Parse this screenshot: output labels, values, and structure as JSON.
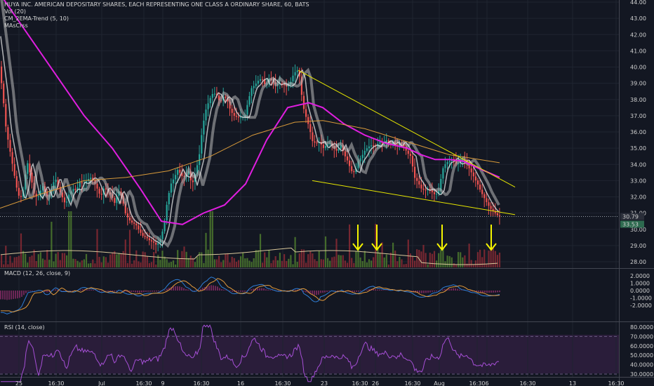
{
  "header": {
    "symbol_title": "HUYA INC. AMERICAN DEPOSITARY SHARES, EACH REPRESENTING ONE CLASS A ORDINARY SHARE, 60, BATS",
    "indicators": [
      "Vol (20)",
      "CM_2EMA-Trend (5, 10)",
      "MAsCrss"
    ]
  },
  "macd_panel": {
    "label": "MACD (12, 26, close, 9)"
  },
  "rsi_panel": {
    "label": "RSI (14, close)"
  },
  "price_badges": {
    "last": "30.79",
    "secondary": "33.53"
  },
  "colors": {
    "background": "#131722",
    "up": "#26a69a",
    "down": "#ef5350",
    "ema": "#e01ee0",
    "trendline": "#e6e600",
    "arrow": "#f5f500",
    "grid": "#1f2430"
  },
  "chart_data": {
    "type": "candlestick",
    "price_axis": {
      "ticks": [
        "44.00",
        "43.00",
        "42.00",
        "41.00",
        "40.00",
        "39.00",
        "38.00",
        "37.00",
        "36.00",
        "35.00",
        "34.00",
        "33.00",
        "32.00",
        "31.00",
        "30.00",
        "29.00",
        "28.00"
      ],
      "range": [
        27.7,
        44.0
      ]
    },
    "time_axis": {
      "ticks": [
        "25",
        "16:30",
        "Jul",
        "16:30",
        "9",
        "16:30",
        "16",
        "16:30",
        "23",
        "16:30",
        "26",
        "16:30",
        "Aug",
        "16:30",
        "6",
        "16:30",
        "13",
        "16:30"
      ]
    },
    "price_path": [
      [
        0,
        40.2
      ],
      [
        5,
        38.5
      ],
      [
        10,
        36.2
      ],
      [
        15,
        35.0
      ],
      [
        20,
        33.8
      ],
      [
        25,
        32.6
      ],
      [
        30,
        31.8
      ],
      [
        35,
        32.5
      ],
      [
        40,
        34.2
      ],
      [
        45,
        33.3
      ],
      [
        50,
        32.2
      ],
      [
        55,
        31.9
      ],
      [
        62,
        32.7
      ],
      [
        66,
        32.3
      ],
      [
        70,
        31.9
      ],
      [
        75,
        32.5
      ],
      [
        80,
        33.2
      ],
      [
        85,
        32.5
      ],
      [
        90,
        32.0
      ],
      [
        95,
        31.5
      ],
      [
        100,
        32.2
      ],
      [
        106,
        32.5
      ],
      [
        110,
        32.4
      ],
      [
        115,
        32.9
      ],
      [
        120,
        32.8
      ],
      [
        125,
        33.0
      ],
      [
        130,
        33.2
      ],
      [
        135,
        33.0
      ],
      [
        140,
        32.5
      ],
      [
        145,
        32.0
      ],
      [
        150,
        32.6
      ],
      [
        155,
        32.3
      ],
      [
        160,
        32.1
      ],
      [
        165,
        31.6
      ],
      [
        170,
        32.4
      ],
      [
        175,
        32.0
      ],
      [
        180,
        31.0
      ],
      [
        185,
        30.6
      ],
      [
        190,
        30.4
      ],
      [
        195,
        30.3
      ],
      [
        200,
        29.9
      ],
      [
        205,
        29.6
      ],
      [
        210,
        29.5
      ],
      [
        215,
        29.3
      ],
      [
        220,
        29.2
      ],
      [
        225,
        29.0
      ],
      [
        230,
        29.4
      ],
      [
        235,
        30.2
      ],
      [
        240,
        31.8
      ],
      [
        245,
        32.8
      ],
      [
        250,
        33.2
      ],
      [
        255,
        33.7
      ],
      [
        260,
        33.3
      ],
      [
        265,
        33.2
      ],
      [
        270,
        33.6
      ],
      [
        275,
        32.7
      ],
      [
        280,
        33.5
      ],
      [
        285,
        34.4
      ],
      [
        290,
        36.3
      ],
      [
        295,
        37.4
      ],
      [
        300,
        38.0
      ],
      [
        305,
        38.4
      ],
      [
        310,
        38.3
      ],
      [
        315,
        37.8
      ],
      [
        320,
        38.2
      ],
      [
        325,
        38.0
      ],
      [
        330,
        37.3
      ],
      [
        335,
        37.0
      ],
      [
        340,
        36.9
      ],
      [
        345,
        36.9
      ],
      [
        350,
        36.9
      ],
      [
        355,
        37.9
      ],
      [
        360,
        38.7
      ],
      [
        365,
        38.9
      ],
      [
        370,
        39.2
      ],
      [
        375,
        39.3
      ],
      [
        380,
        38.8
      ],
      [
        385,
        39.3
      ],
      [
        390,
        39.1
      ],
      [
        395,
        38.9
      ],
      [
        400,
        39.0
      ],
      [
        405,
        38.9
      ],
      [
        410,
        38.8
      ],
      [
        415,
        39.0
      ],
      [
        420,
        39.6
      ],
      [
        425,
        39.8
      ],
      [
        430,
        39.2
      ],
      [
        432,
        37.8
      ],
      [
        437,
        37.0
      ],
      [
        442,
        36.3
      ],
      [
        447,
        35.4
      ],
      [
        452,
        35.3
      ],
      [
        457,
        35.4
      ],
      [
        462,
        35.0
      ],
      [
        467,
        35.2
      ],
      [
        472,
        35.3
      ],
      [
        477,
        35.0
      ],
      [
        482,
        34.8
      ],
      [
        487,
        35.2
      ],
      [
        492,
        34.6
      ],
      [
        497,
        34.2
      ],
      [
        502,
        33.6
      ],
      [
        507,
        33.5
      ],
      [
        512,
        34.2
      ],
      [
        517,
        34.5
      ],
      [
        522,
        34.9
      ],
      [
        527,
        35.1
      ],
      [
        532,
        35.2
      ],
      [
        537,
        35.1
      ],
      [
        542,
        35.4
      ],
      [
        547,
        35.3
      ],
      [
        552,
        35.5
      ],
      [
        557,
        35.2
      ],
      [
        562,
        35.4
      ],
      [
        567,
        35.1
      ],
      [
        572,
        35.4
      ],
      [
        577,
        35.1
      ],
      [
        582,
        34.7
      ],
      [
        587,
        34.5
      ],
      [
        592,
        33.2
      ],
      [
        597,
        32.9
      ],
      [
        602,
        32.5
      ],
      [
        607,
        32.4
      ],
      [
        612,
        32.5
      ],
      [
        617,
        32.3
      ],
      [
        622,
        32.1
      ],
      [
        627,
        32.4
      ],
      [
        632,
        33.7
      ],
      [
        637,
        34.1
      ],
      [
        642,
        34.2
      ],
      [
        647,
        34.4
      ],
      [
        652,
        34.0
      ],
      [
        657,
        34.1
      ],
      [
        662,
        34.3
      ],
      [
        667,
        34.0
      ],
      [
        672,
        33.6
      ],
      [
        677,
        33.2
      ],
      [
        682,
        32.8
      ],
      [
        687,
        32.3
      ],
      [
        692,
        31.9
      ],
      [
        697,
        31.5
      ],
      [
        702,
        31.2
      ],
      [
        707,
        31.0
      ],
      [
        712,
        30.8
      ]
    ],
    "overlays": [
      {
        "color": "ema",
        "points": [
          [
            0,
            44.5
          ],
          [
            40,
            42.0
          ],
          [
            80,
            39.5
          ],
          [
            120,
            37.0
          ],
          [
            160,
            35.0
          ],
          [
            200,
            32.5
          ],
          [
            230,
            30.5
          ],
          [
            260,
            30.3
          ],
          [
            290,
            31.0
          ],
          [
            320,
            31.5
          ],
          [
            350,
            32.8
          ],
          [
            380,
            35.5
          ],
          [
            410,
            37.5
          ],
          [
            440,
            37.8
          ],
          [
            460,
            37.5
          ],
          [
            490,
            36.5
          ],
          [
            520,
            35.8
          ],
          [
            550,
            35.3
          ],
          [
            580,
            35.0
          ],
          [
            600,
            34.6
          ],
          [
            620,
            34.3
          ],
          [
            640,
            34.3
          ],
          [
            660,
            34.2
          ],
          [
            680,
            33.8
          ],
          [
            712,
            33.2
          ]
        ]
      },
      {
        "color": "orange",
        "points": [
          [
            0,
            31.3
          ],
          [
            60,
            32.2
          ],
          [
            120,
            33.0
          ],
          [
            180,
            33.2
          ],
          [
            240,
            33.6
          ],
          [
            300,
            34.5
          ],
          [
            360,
            35.8
          ],
          [
            420,
            36.6
          ],
          [
            460,
            36.7
          ],
          [
            520,
            36.2
          ],
          [
            580,
            35.4
          ],
          [
            640,
            34.6
          ],
          [
            712,
            34.1
          ]
        ]
      },
      {
        "color": "trendline",
        "points": [
          [
            425,
            39.8
          ],
          [
            734,
            32.6
          ]
        ]
      },
      {
        "color": "trendline",
        "points": [
          [
            445,
            33.0
          ],
          [
            734,
            30.9
          ]
        ]
      }
    ],
    "volume_arrows_x": [
      510,
      537,
      630,
      700
    ],
    "rsi_axis": {
      "ticks": [
        "80.0000",
        "70.0000",
        "60.0000",
        "50.0000",
        "40.0000",
        "30.0000"
      ]
    },
    "macd_axis": {
      "ticks": [
        "2.0000",
        "1.0000",
        "0.0000",
        "-1.0000",
        "-2.0000"
      ]
    }
  }
}
